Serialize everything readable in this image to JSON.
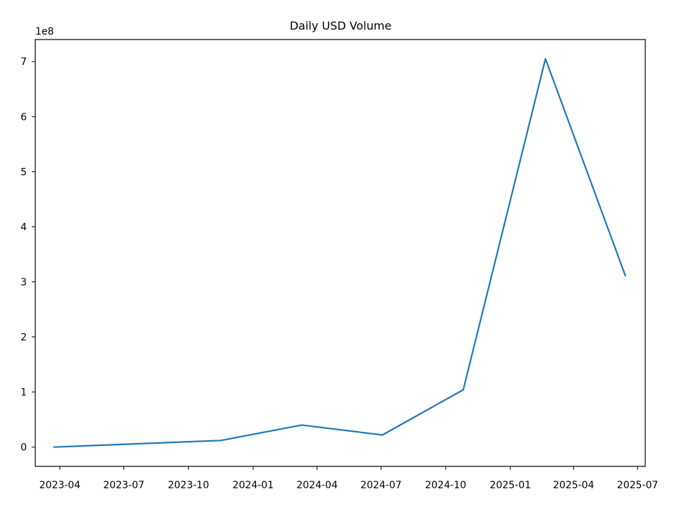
{
  "chart_data": {
    "type": "line",
    "title": "Daily USD Volume",
    "xlabel": "",
    "ylabel": "",
    "y_offset_label": "1e8",
    "x": [
      "2023-03-23",
      "2023-11-16",
      "2024-03-10",
      "2024-07-03",
      "2024-10-26",
      "2025-02-20",
      "2025-06-14"
    ],
    "series": [
      {
        "values": [
          0.0,
          0.12,
          0.4,
          0.22,
          1.04,
          7.05,
          3.1
        ],
        "color": "#1f77b4"
      }
    ],
    "x_ticks": [
      "2023-04",
      "2023-07",
      "2023-10",
      "2024-01",
      "2024-04",
      "2024-07",
      "2024-10",
      "2025-01",
      "2025-04",
      "2025-07"
    ],
    "x_tick_dates": [
      "2023-04-01",
      "2023-07-01",
      "2023-10-01",
      "2024-01-01",
      "2024-04-01",
      "2024-07-01",
      "2024-10-01",
      "2025-01-01",
      "2025-04-01",
      "2025-07-01"
    ],
    "y_ticks": [
      "0",
      "1",
      "2",
      "3",
      "4",
      "5",
      "6",
      "7"
    ],
    "xlim": [
      "2023-02-25",
      "2025-07-12"
    ],
    "ylim": [
      -0.35,
      7.4
    ],
    "grid": false,
    "legend": "none"
  }
}
